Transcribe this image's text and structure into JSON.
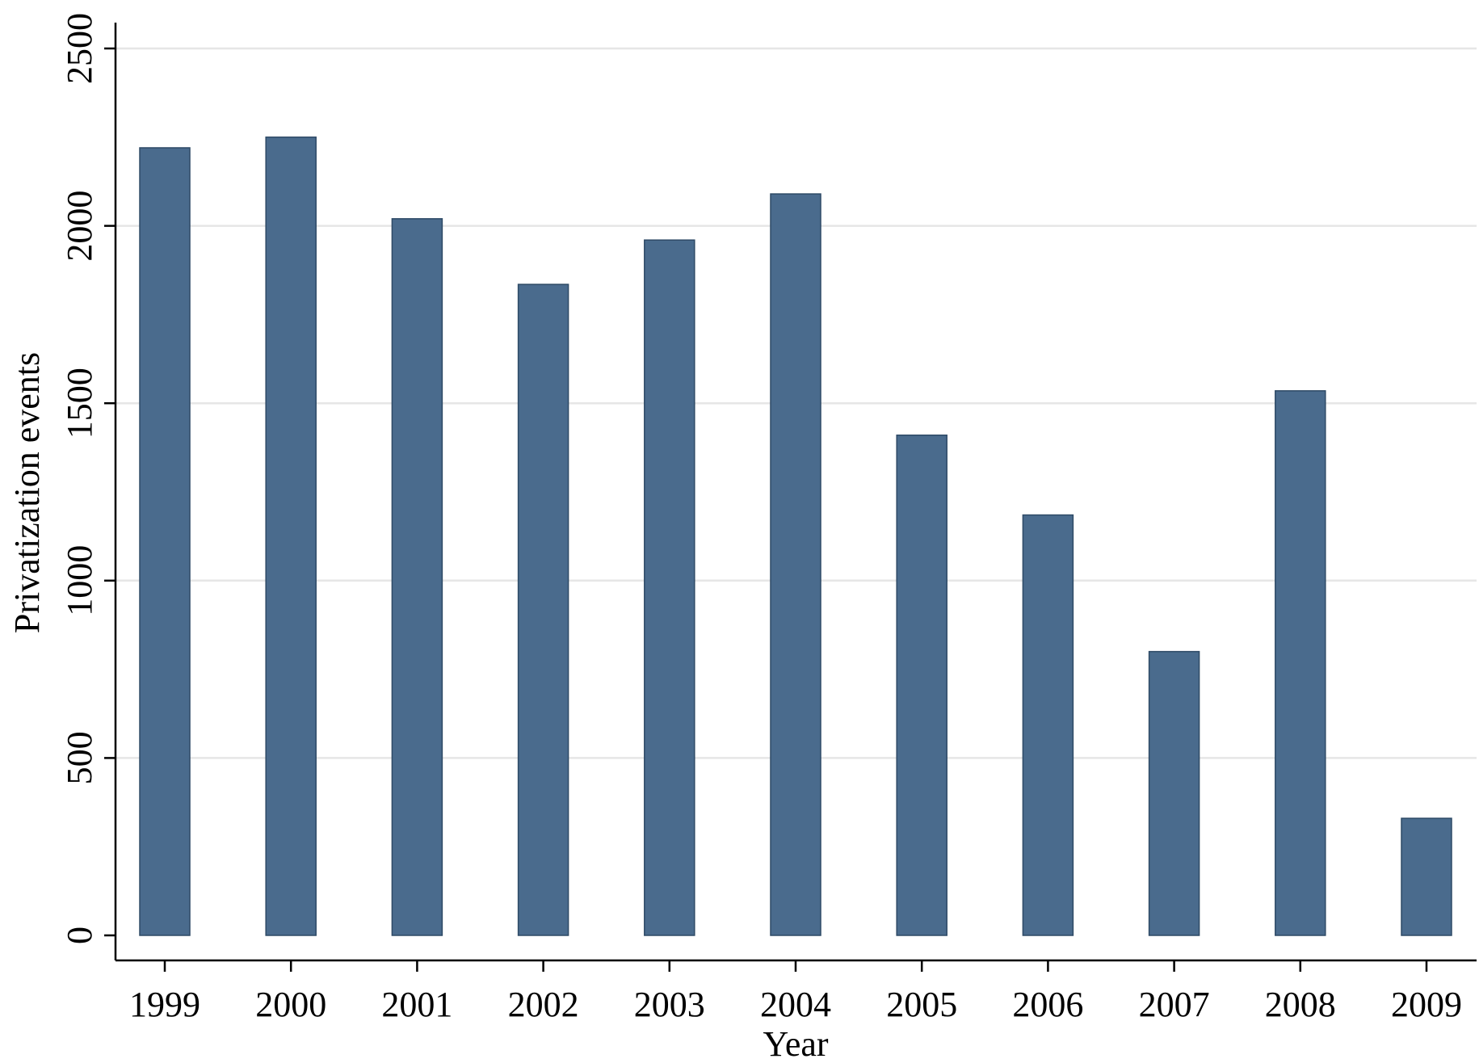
{
  "chart_data": {
    "type": "bar",
    "title": "",
    "xlabel": "Year",
    "ylabel": "Privatization events",
    "categories": [
      "1999",
      "2000",
      "2001",
      "2002",
      "2003",
      "2004",
      "2005",
      "2006",
      "2007",
      "2008",
      "2009"
    ],
    "values": [
      2220,
      2250,
      2020,
      1835,
      1960,
      2090,
      1410,
      1185,
      800,
      1535,
      330
    ],
    "ylim": [
      0,
      2500
    ],
    "yticks": [
      0,
      500,
      1000,
      1500,
      2000,
      2500
    ],
    "ytick_labels": [
      "0",
      "500",
      "1000",
      "1500",
      "2000",
      "2500"
    ],
    "grid": true,
    "legend": "none",
    "colors": {
      "bar": "#4a6b8d",
      "bar_edge": "#2e4a66",
      "grid": "#e6e6e6",
      "axis": "#000000"
    }
  }
}
